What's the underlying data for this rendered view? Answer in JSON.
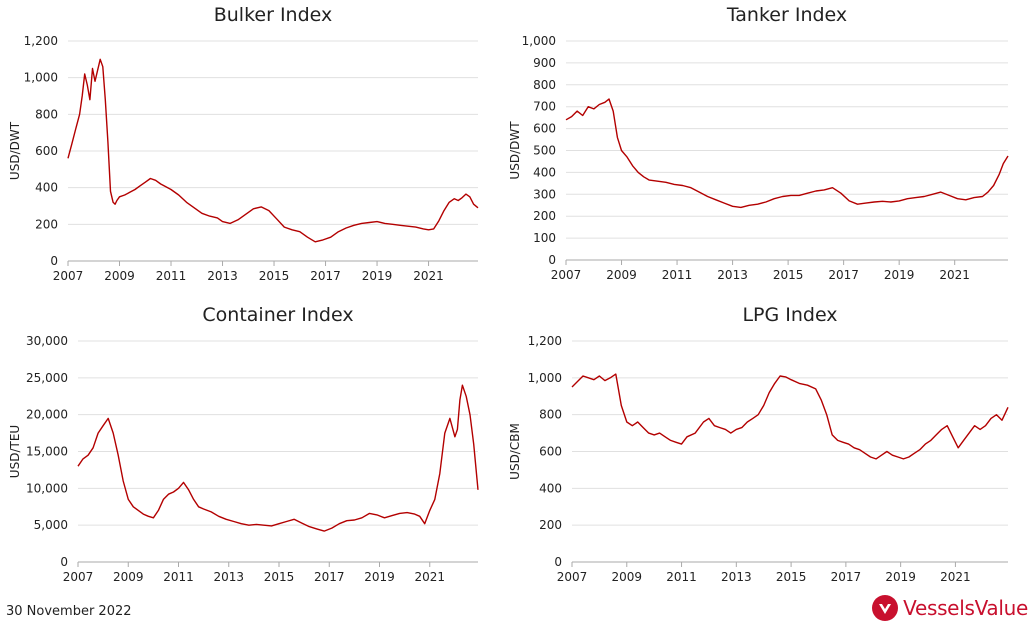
{
  "colors": {
    "line": "#b30000",
    "grid": "#e0e0e0",
    "axis": "#aaaaaa",
    "text": "#222222",
    "title": "#222222",
    "brand": "#c8102e"
  },
  "footer": {
    "date": "30 November 2022"
  },
  "brand": {
    "name": "VesselsValue",
    "logo_icon": "vesselsvalue-logo-icon"
  },
  "chart_data": [
    {
      "id": "bulker",
      "type": "line",
      "title": "Bulker Index",
      "ylabel": "USD/DWT",
      "xlabel": "",
      "xlim": [
        2007,
        2022.92
      ],
      "ylim": [
        0,
        1200
      ],
      "yticks": [
        0,
        200,
        400,
        600,
        800,
        "1,000",
        "1,200"
      ],
      "xticks": [
        2007,
        2009,
        2011,
        2013,
        2015,
        2017,
        2019,
        2021
      ],
      "grid": true,
      "series": [
        {
          "x": [
            2007.0,
            2007.15,
            2007.3,
            2007.45,
            2007.55,
            2007.65,
            2007.75,
            2007.85,
            2007.95,
            2008.05,
            2008.15,
            2008.25,
            2008.35,
            2008.45,
            2008.55,
            2008.65,
            2008.75,
            2008.83,
            2008.9,
            2009.0,
            2009.2,
            2009.4,
            2009.6,
            2009.8,
            2010.0,
            2010.2,
            2010.4,
            2010.6,
            2010.8,
            2011.0,
            2011.3,
            2011.6,
            2011.9,
            2012.2,
            2012.5,
            2012.8,
            2013.0,
            2013.3,
            2013.6,
            2013.9,
            2014.2,
            2014.5,
            2014.8,
            2015.1,
            2015.4,
            2015.7,
            2016.0,
            2016.3,
            2016.6,
            2016.9,
            2017.2,
            2017.5,
            2017.8,
            2018.1,
            2018.4,
            2018.7,
            2019.0,
            2019.3,
            2019.6,
            2019.9,
            2020.2,
            2020.5,
            2020.8,
            2021.0,
            2021.2,
            2021.4,
            2021.6,
            2021.8,
            2022.0,
            2022.15,
            2022.3,
            2022.45,
            2022.6,
            2022.75,
            2022.92
          ],
          "y": [
            560,
            640,
            720,
            800,
            900,
            1020,
            960,
            880,
            1050,
            980,
            1040,
            1100,
            1060,
            880,
            650,
            380,
            320,
            310,
            330,
            350,
            360,
            375,
            390,
            410,
            430,
            450,
            440,
            420,
            405,
            390,
            360,
            320,
            290,
            260,
            245,
            235,
            215,
            205,
            225,
            255,
            285,
            295,
            275,
            230,
            185,
            170,
            160,
            130,
            105,
            115,
            130,
            160,
            180,
            195,
            205,
            210,
            215,
            205,
            200,
            195,
            190,
            185,
            175,
            170,
            175,
            220,
            275,
            320,
            340,
            330,
            345,
            365,
            350,
            310,
            290
          ]
        }
      ]
    },
    {
      "id": "tanker",
      "type": "line",
      "title": "Tanker Index",
      "ylabel": "USD/DWT",
      "xlabel": "",
      "xlim": [
        2007,
        2022.92
      ],
      "ylim": [
        0,
        1000
      ],
      "yticks": [
        0,
        100,
        200,
        300,
        400,
        500,
        600,
        700,
        800,
        900,
        "1,000"
      ],
      "xticks": [
        2007,
        2009,
        2011,
        2013,
        2015,
        2017,
        2019,
        2021
      ],
      "grid": true,
      "series": [
        {
          "x": [
            2007.0,
            2007.2,
            2007.4,
            2007.6,
            2007.8,
            2008.0,
            2008.2,
            2008.4,
            2008.55,
            2008.7,
            2008.85,
            2009.0,
            2009.2,
            2009.4,
            2009.6,
            2009.8,
            2010.0,
            2010.3,
            2010.6,
            2010.9,
            2011.2,
            2011.5,
            2011.8,
            2012.1,
            2012.4,
            2012.7,
            2013.0,
            2013.3,
            2013.6,
            2013.9,
            2014.2,
            2014.5,
            2014.8,
            2015.1,
            2015.4,
            2015.7,
            2016.0,
            2016.3,
            2016.6,
            2016.9,
            2017.2,
            2017.5,
            2017.8,
            2018.1,
            2018.4,
            2018.7,
            2019.0,
            2019.3,
            2019.6,
            2019.9,
            2020.2,
            2020.5,
            2020.8,
            2021.1,
            2021.4,
            2021.7,
            2022.0,
            2022.2,
            2022.4,
            2022.6,
            2022.75,
            2022.92
          ],
          "y": [
            640,
            655,
            680,
            660,
            700,
            690,
            710,
            720,
            735,
            680,
            560,
            500,
            470,
            430,
            400,
            380,
            365,
            360,
            355,
            345,
            340,
            330,
            310,
            290,
            275,
            260,
            245,
            240,
            250,
            255,
            265,
            280,
            290,
            295,
            295,
            305,
            315,
            320,
            330,
            305,
            270,
            255,
            260,
            265,
            268,
            265,
            270,
            280,
            285,
            290,
            300,
            310,
            295,
            280,
            275,
            285,
            290,
            310,
            340,
            390,
            440,
            475
          ]
        }
      ]
    },
    {
      "id": "container",
      "type": "line",
      "title": "Container Index",
      "ylabel": "USD/TEU",
      "xlabel": "",
      "xlim": [
        2007,
        2022.92
      ],
      "ylim": [
        0,
        30000
      ],
      "yticks": [
        0,
        "5,000",
        "10,000",
        "15,000",
        "20,000",
        "25,000",
        "30,000"
      ],
      "xticks": [
        2007,
        2009,
        2011,
        2013,
        2015,
        2017,
        2019,
        2021
      ],
      "grid": true,
      "series": [
        {
          "x": [
            2007.0,
            2007.2,
            2007.4,
            2007.6,
            2007.8,
            2008.0,
            2008.2,
            2008.4,
            2008.6,
            2008.8,
            2009.0,
            2009.2,
            2009.4,
            2009.6,
            2009.8,
            2010.0,
            2010.2,
            2010.4,
            2010.6,
            2010.8,
            2011.0,
            2011.2,
            2011.4,
            2011.6,
            2011.8,
            2012.0,
            2012.3,
            2012.6,
            2012.9,
            2013.2,
            2013.5,
            2013.8,
            2014.1,
            2014.4,
            2014.7,
            2015.0,
            2015.3,
            2015.6,
            2015.9,
            2016.2,
            2016.5,
            2016.8,
            2017.1,
            2017.4,
            2017.7,
            2018.0,
            2018.3,
            2018.6,
            2018.9,
            2019.2,
            2019.5,
            2019.8,
            2020.1,
            2020.4,
            2020.6,
            2020.8,
            2021.0,
            2021.2,
            2021.4,
            2021.6,
            2021.8,
            2022.0,
            2022.1,
            2022.2,
            2022.3,
            2022.45,
            2022.6,
            2022.75,
            2022.92
          ],
          "y": [
            13000,
            14000,
            14500,
            15500,
            17500,
            18500,
            19500,
            17500,
            14500,
            11000,
            8500,
            7500,
            7000,
            6500,
            6200,
            6000,
            7000,
            8500,
            9200,
            9500,
            10000,
            10800,
            9800,
            8500,
            7500,
            7200,
            6800,
            6200,
            5800,
            5500,
            5200,
            5000,
            5100,
            5000,
            4900,
            5200,
            5500,
            5800,
            5300,
            4800,
            4500,
            4200,
            4600,
            5200,
            5600,
            5700,
            6000,
            6600,
            6400,
            6000,
            6300,
            6600,
            6700,
            6500,
            6200,
            5200,
            7000,
            8500,
            12000,
            17500,
            19500,
            17000,
            18000,
            22000,
            24000,
            22500,
            20000,
            16000,
            9800
          ]
        }
      ]
    },
    {
      "id": "lpg",
      "type": "line",
      "title": "LPG Index",
      "ylabel": "USD/CBM",
      "xlabel": "",
      "xlim": [
        2007,
        2022.92
      ],
      "ylim": [
        0,
        1200
      ],
      "yticks": [
        0,
        200,
        400,
        600,
        800,
        "1,000",
        "1,200"
      ],
      "xticks": [
        2007,
        2009,
        2011,
        2013,
        2015,
        2017,
        2019,
        2021
      ],
      "grid": true,
      "series": [
        {
          "x": [
            2007.0,
            2007.2,
            2007.4,
            2007.6,
            2007.8,
            2008.0,
            2008.2,
            2008.4,
            2008.6,
            2008.8,
            2009.0,
            2009.2,
            2009.4,
            2009.6,
            2009.8,
            2010.0,
            2010.2,
            2010.4,
            2010.6,
            2010.8,
            2011.0,
            2011.2,
            2011.5,
            2011.8,
            2012.0,
            2012.2,
            2012.4,
            2012.6,
            2012.8,
            2013.0,
            2013.2,
            2013.4,
            2013.6,
            2013.8,
            2014.0,
            2014.2,
            2014.4,
            2014.6,
            2014.8,
            2015.0,
            2015.3,
            2015.6,
            2015.9,
            2016.1,
            2016.3,
            2016.5,
            2016.7,
            2016.9,
            2017.1,
            2017.3,
            2017.5,
            2017.7,
            2017.9,
            2018.1,
            2018.3,
            2018.5,
            2018.7,
            2018.9,
            2019.1,
            2019.3,
            2019.5,
            2019.7,
            2019.9,
            2020.1,
            2020.3,
            2020.5,
            2020.7,
            2020.9,
            2021.1,
            2021.3,
            2021.5,
            2021.7,
            2021.9,
            2022.1,
            2022.3,
            2022.5,
            2022.7,
            2022.92
          ],
          "y": [
            950,
            980,
            1010,
            1000,
            990,
            1010,
            985,
            1000,
            1020,
            850,
            760,
            740,
            760,
            730,
            700,
            690,
            700,
            680,
            660,
            650,
            640,
            680,
            700,
            760,
            780,
            740,
            730,
            720,
            700,
            720,
            730,
            760,
            780,
            800,
            850,
            920,
            970,
            1010,
            1005,
            990,
            970,
            960,
            940,
            880,
            800,
            690,
            660,
            650,
            640,
            620,
            610,
            590,
            570,
            560,
            580,
            600,
            580,
            570,
            560,
            570,
            590,
            610,
            640,
            660,
            690,
            720,
            740,
            680,
            620,
            660,
            700,
            740,
            720,
            740,
            780,
            800,
            770,
            840
          ]
        }
      ]
    }
  ]
}
